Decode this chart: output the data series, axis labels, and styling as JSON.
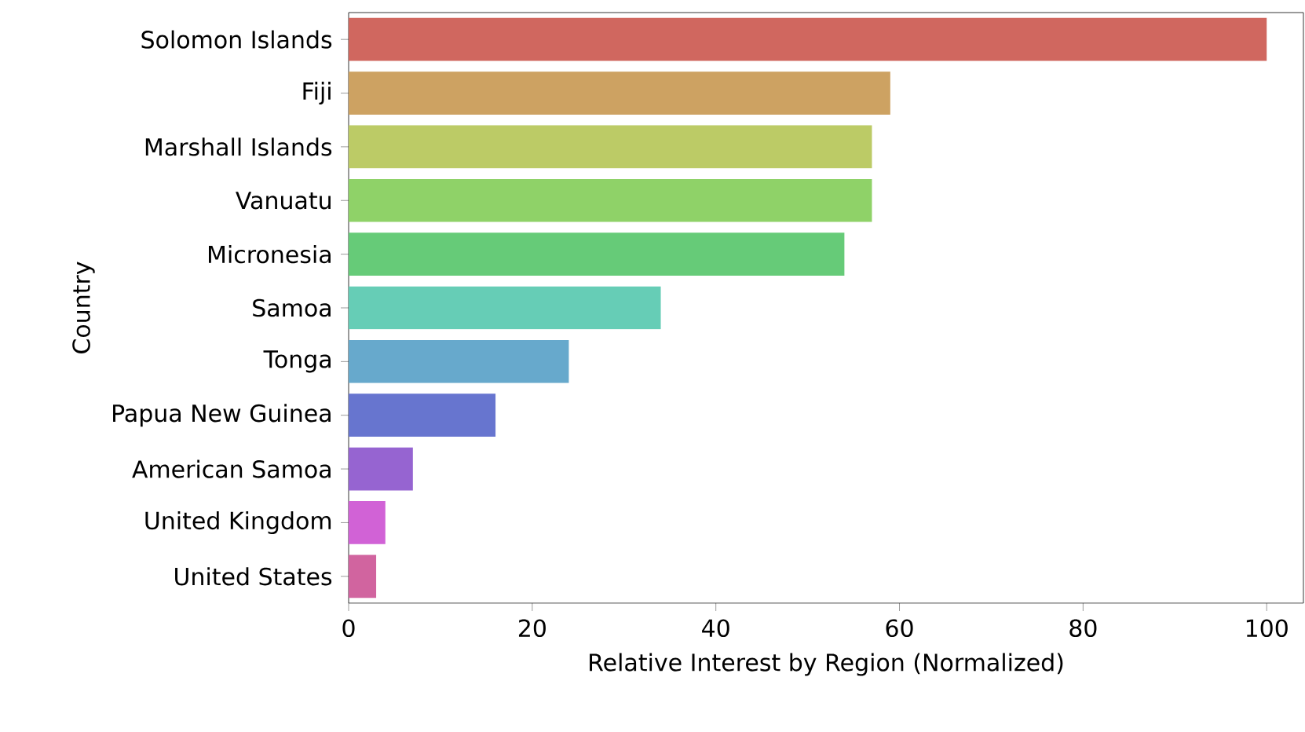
{
  "chart_data": {
    "type": "bar",
    "orientation": "horizontal",
    "xlabel": "Relative Interest by Region (Normalized)",
    "ylabel": "Country",
    "categories": [
      "Solomon Islands",
      "Fiji",
      "Marshall Islands",
      "Vanuatu",
      "Micronesia",
      "Samoa",
      "Tonga",
      "Papua New Guinea",
      "American Samoa",
      "United Kingdom",
      "United States"
    ],
    "values": [
      100,
      59,
      57,
      57,
      54,
      34,
      24,
      16,
      7,
      4,
      3
    ],
    "colors": [
      "#d0675f",
      "#cda262",
      "#bccb66",
      "#8fd268",
      "#66cb78",
      "#66cdb6",
      "#67a9cc",
      "#6775cf",
      "#9664d1",
      "#d162d6",
      "#d1649f"
    ],
    "xlim": [
      0,
      104
    ],
    "xticks": [
      0,
      20,
      40,
      60,
      80,
      100
    ],
    "grid": false
  }
}
